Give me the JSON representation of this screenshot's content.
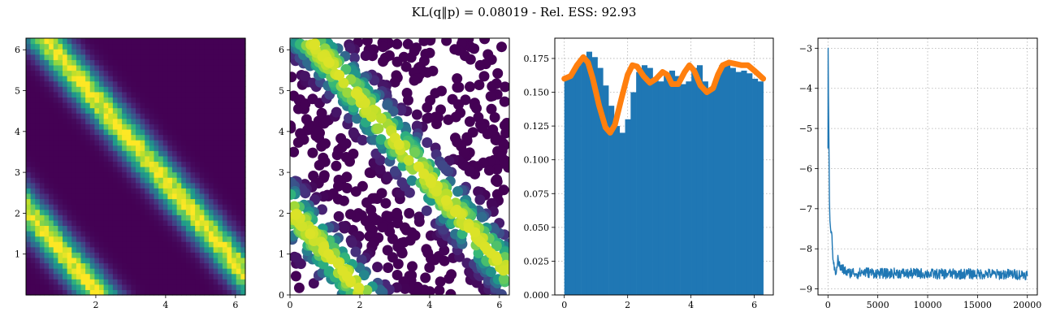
{
  "figure": {
    "title": "KL(q‖p) = 0.08019 - Rel. ESS: 92.93"
  },
  "colors": {
    "viridis_low": "#440154",
    "viridis_mid": "#21918c",
    "viridis_high": "#fde725",
    "hist_bar": "#1f77b4",
    "density_line": "#ff7f0e",
    "loss_line": "#1f77b4",
    "grid": "#b0b0b0"
  },
  "chart_data": [
    {
      "type": "heatmap",
      "name": "target-density",
      "x_range": [
        0,
        6.283
      ],
      "y_range": [
        0,
        6.283
      ],
      "xticks": [
        2,
        4,
        6
      ],
      "yticks": [
        1,
        2,
        3,
        4,
        5,
        6
      ],
      "grid": false,
      "colormap": "viridis",
      "bands": [
        {
          "anti_diagonal_offset": 6.8,
          "width": 0.3,
          "peak": 1.0
        },
        {
          "anti_diagonal_offset": 2.1,
          "width": 0.3,
          "peak": 1.0
        }
      ],
      "resolution": 48
    },
    {
      "type": "scatter",
      "name": "flow-samples",
      "x_range": [
        0,
        6.283
      ],
      "y_range": [
        0,
        6.283
      ],
      "xticks": [
        0,
        2,
        4,
        6
      ],
      "yticks": [
        0,
        1,
        2,
        3,
        4,
        5,
        6
      ],
      "grid": false,
      "colormap": "viridis",
      "bands": [
        {
          "anti_diagonal_offset": 6.8,
          "width": 0.3,
          "peak": 1.0
        },
        {
          "anti_diagonal_offset": 2.1,
          "width": 0.3,
          "peak": 1.0
        }
      ],
      "sample_count": 900
    },
    {
      "type": "bar",
      "name": "angle-histogram",
      "x_range": [
        -0.3,
        6.6
      ],
      "ylim": [
        0,
        0.19
      ],
      "xticks": [
        0,
        2,
        4,
        6
      ],
      "yticks": [
        0.0,
        0.025,
        0.05,
        0.075,
        0.1,
        0.125,
        0.15,
        0.175
      ],
      "ytick_labels": [
        "0.000",
        "0.025",
        "0.050",
        "0.075",
        "0.100",
        "0.125",
        "0.150",
        "0.175"
      ],
      "grid": true,
      "bins": {
        "start": 0,
        "end": 6.283,
        "values": [
          0.16,
          0.165,
          0.17,
          0.175,
          0.18,
          0.176,
          0.168,
          0.155,
          0.14,
          0.125,
          0.12,
          0.13,
          0.15,
          0.165,
          0.17,
          0.168,
          0.16,
          0.158,
          0.163,
          0.166,
          0.162,
          0.156,
          0.158,
          0.168,
          0.17,
          0.158,
          0.152,
          0.16,
          0.17,
          0.172,
          0.168,
          0.165,
          0.166,
          0.164,
          0.16,
          0.158
        ]
      },
      "line": {
        "x": [
          0,
          0.2,
          0.4,
          0.6,
          0.75,
          0.9,
          1.1,
          1.3,
          1.45,
          1.6,
          1.8,
          2.0,
          2.15,
          2.3,
          2.5,
          2.7,
          2.9,
          3.1,
          3.25,
          3.4,
          3.6,
          3.8,
          3.95,
          4.1,
          4.3,
          4.5,
          4.7,
          4.85,
          5.0,
          5.2,
          5.4,
          5.6,
          5.8,
          6.0,
          6.283
        ],
        "y": [
          0.16,
          0.162,
          0.17,
          0.176,
          0.172,
          0.16,
          0.14,
          0.124,
          0.12,
          0.126,
          0.145,
          0.163,
          0.17,
          0.169,
          0.162,
          0.157,
          0.16,
          0.165,
          0.163,
          0.156,
          0.156,
          0.165,
          0.17,
          0.166,
          0.155,
          0.15,
          0.153,
          0.163,
          0.17,
          0.172,
          0.171,
          0.17,
          0.17,
          0.166,
          0.16
        ]
      }
    },
    {
      "type": "line",
      "name": "training-loss",
      "x_range": [
        -1000,
        21000
      ],
      "ylim": [
        -9.15,
        -2.75
      ],
      "xticks": [
        0,
        5000,
        10000,
        15000,
        20000
      ],
      "yticks": [
        -9,
        -8,
        -7,
        -6,
        -5,
        -4,
        -3
      ],
      "ytick_labels": [
        "−9",
        "−8",
        "−7",
        "−6",
        "−5",
        "−4",
        "−3"
      ],
      "grid": true,
      "series": [
        {
          "x": [
            0,
            20,
            50,
            100,
            150,
            200,
            300,
            400,
            500,
            600,
            800,
            1000,
            1200,
            1500,
            1800,
            2000,
            2500,
            3000,
            3500,
            4000,
            5000,
            6000,
            7000,
            8000,
            9000,
            10000,
            11000,
            12000,
            13000,
            14000,
            15000,
            16000,
            17000,
            18000,
            19000,
            20000
          ],
          "y": [
            -5.5,
            -3.0,
            -4.2,
            -5.4,
            -6.8,
            -7.3,
            -7.6,
            -7.8,
            -8.2,
            -8.5,
            -8.6,
            -8.3,
            -8.5,
            -8.55,
            -8.6,
            -8.65,
            -8.62,
            -8.66,
            -8.62,
            -8.63,
            -8.65,
            -8.66,
            -8.64,
            -8.66,
            -8.65,
            -8.66,
            -8.67,
            -8.66,
            -8.67,
            -8.66,
            -8.67,
            -8.66,
            -8.68,
            -8.67,
            -8.68,
            -8.68
          ]
        }
      ],
      "noise_amplitude": 0.13
    }
  ]
}
